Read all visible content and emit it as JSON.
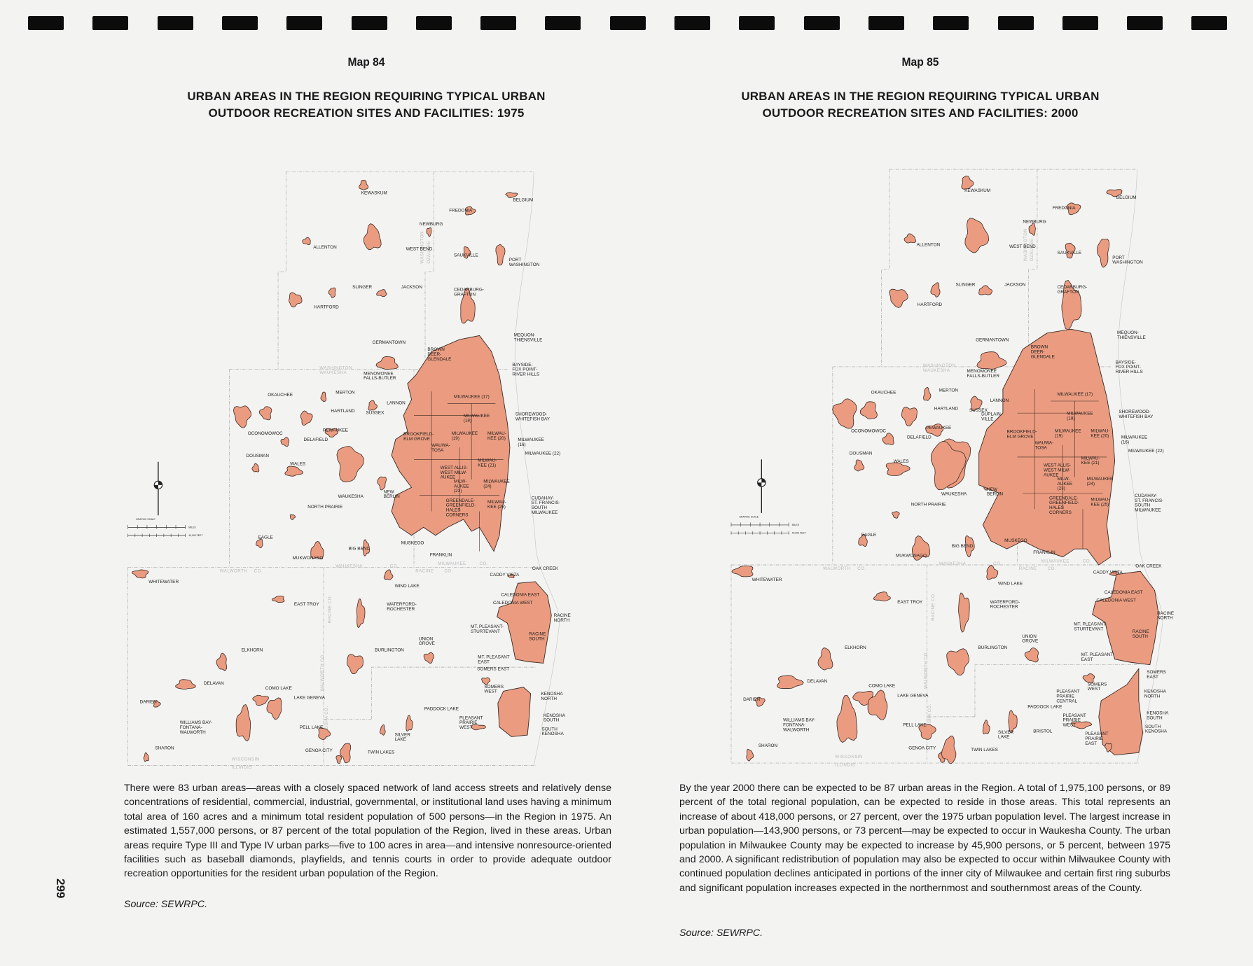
{
  "page_number": "299",
  "colors": {
    "urban_area": "#eb9c80",
    "outline": "#3b2a24",
    "county_line": "#a8a8a8",
    "page": "#f3f3f2"
  },
  "maps": [
    {
      "number": "Map 84",
      "title_lines": [
        "URBAN AREAS IN THE REGION REQUIRING TYPICAL URBAN",
        "OUTDOOR RECREATION SITES AND FACILITIES: 1975"
      ],
      "paragraph": "There were 83 urban areas—areas with a closely spaced network of land access streets and relatively dense concentrations of residential, commercial, industrial, governmental, or institutional land uses having a minimum total area of 160 acres and a minimum total resident population of 500 persons—in the Region in 1975. An estimated 1,557,000 persons, or 87 percent of the total population of the Region, lived in these areas. Urban areas require Type III and Type IV urban parks—five to 100 acres in area—and intensive nonresource-oriented facilities such as baseball diamonds, playfields, and tennis courts in order to provide adequate outdoor recreation opportunities for the resident urban population of the Region.",
      "source": "Source:  SEWRPC.",
      "labels": [
        [
          "KEWASKUM"
        ],
        [
          "FREDONIA"
        ],
        [
          "BELGIUM"
        ],
        [
          "NEWBURG"
        ],
        [
          "ALLENTON"
        ],
        [
          "WEST BEND"
        ],
        [
          "SAUKVILLE"
        ],
        [
          "PORT",
          "WASHINGTON"
        ],
        [
          "SLINGER"
        ],
        [
          "JACKSON"
        ],
        [
          "CEDARBURG-",
          "GRAFTON"
        ],
        [
          "HARTFORD"
        ],
        [
          "GERMANTOWN"
        ],
        [
          "MEQUON-",
          "THIENSVILLE"
        ],
        [
          "BROWN",
          "DEER-",
          "GLENDALE"
        ],
        [
          "BAYSIDE-",
          "FOX POINT-",
          "RIVER HILLS"
        ],
        [
          "MENOMONEE",
          "FALLS-BUTLER"
        ],
        [
          "OKAUCHEE"
        ],
        [
          "MERTON"
        ],
        [
          "LANNON"
        ],
        [
          "HARTLAND"
        ],
        [
          "SUSSEX"
        ],
        [
          "SHOREWOOD-",
          "WHITEFISH BAY"
        ],
        [
          "MILWAUKEE (17)"
        ],
        [
          "MILWAUKEE",
          "(18)"
        ],
        [
          "OCONOMOWOC"
        ],
        [
          "PEWAUKEE"
        ],
        [
          "BROOKFIELD-",
          "ELM GROVE"
        ],
        [
          "MILWAUKEE",
          "(19)"
        ],
        [
          "MILWAU-",
          "KEE (20)"
        ],
        [
          "DELAFIELD"
        ],
        [
          "MILWAUKEE",
          "(16)"
        ],
        [
          "WAUWA-",
          "TOSA"
        ],
        [
          "MILWAUKEE (22)"
        ],
        [
          "DOUSMAN"
        ],
        [
          "WALES"
        ],
        [
          "MILWAU-",
          "KEE (21)"
        ],
        [
          "WEST ALLIS-",
          "WEST MILW-",
          "AUKEE"
        ],
        [
          "MILW-",
          "AUKEE",
          "(23)"
        ],
        [
          "MILWAUKEE",
          "(24)"
        ],
        [
          "WAUKESHA"
        ],
        [
          "NEW",
          "BERLIN"
        ],
        [
          "GREENDALE-",
          "GREENFIELD-",
          "HALES",
          "CORNERS"
        ],
        [
          "MILWAU-",
          "KEE (25)"
        ],
        [
          "CUDAHAY-",
          "ST. FRANCIS-",
          "SOUTH",
          "MILWAUKEE"
        ],
        [
          "NORTH PRAIRIE"
        ],
        [
          "EAGLE"
        ],
        [
          "MUSKEGO"
        ],
        [
          "BIG BEND"
        ],
        [
          "MUKWONAGO"
        ],
        [
          "FRANKLIN"
        ],
        [
          "OAK CREEK"
        ],
        [
          "CADDY VISTA"
        ],
        [
          "WHITEWATER"
        ],
        [
          "WIND LAKE"
        ],
        [
          "CALEDONIA EAST"
        ],
        [
          "CALEDONIA WEST"
        ],
        [
          "EAST TROY"
        ],
        [
          "WATERFORD-",
          "ROCHESTER"
        ],
        [
          "RACINE",
          "NORTH"
        ],
        [
          "MT. PLEASANT-",
          "STURTEVANT"
        ],
        [
          "RACINE",
          "SOUTH"
        ],
        [
          "UNION",
          "GROVE"
        ],
        [
          "BURLINGTON"
        ],
        [
          "ELKHORN"
        ],
        [
          "MT. PLEASANT",
          "EAST"
        ],
        [
          "SOMERS EAST"
        ],
        [
          "SOMERS",
          "WEST"
        ],
        [
          "DELAVAN"
        ],
        [
          "COMO LAKE"
        ],
        [
          "LAKE GENEVA"
        ],
        [
          "KENOSHA",
          "NORTH"
        ],
        [
          "DARIEN"
        ],
        [
          "PADDOCK LAKE"
        ],
        [
          "PLEASANT",
          "PRAIRIE",
          "WEST"
        ],
        [
          "KENOSHA",
          "SOUTH"
        ],
        [
          "WILLIAMS BAY-",
          "FONTANA-",
          "WALWORTH"
        ],
        [
          "SOUTH",
          "KENOSHA"
        ],
        [
          "PELL LAKE"
        ],
        [
          "SILVER",
          "LAKE"
        ],
        [
          "SHARON"
        ],
        [
          "GENOA CITY"
        ],
        [
          "TWIN LAKES"
        ]
      ]
    },
    {
      "number": "Map 85",
      "title_lines": [
        "URBAN AREAS IN THE REGION REQUIRING TYPICAL URBAN",
        "OUTDOOR RECREATION SITES AND FACILITIES: 2000"
      ],
      "paragraph": "By the year 2000 there can be expected to be 87 urban areas in the Region. A total of 1,975,100 persons, or 89 percent of the total regional population, can be expected to reside in those areas. This total represents an increase of about 418,000 persons, or 27 percent, over the 1975 urban population level. The largest increase in urban population—143,900 persons, or 73 percent—may be expected to occur in Waukesha County. The urban population in Milwaukee County may be expected to increase by 45,900 persons, or 5 percent, between 1975 and 2000. A significant redistribution of population may also be expected to occur within Milwaukee County with continued population declines anticipated in portions of the inner city of Milwaukee and certain first ring suburbs and significant population increases expected in the northernmost and southernmost areas of the County.",
      "source": "Source:  SEWRPC.",
      "labels": [
        [
          "KEWASKUM"
        ],
        [
          "FREDONIA"
        ],
        [
          "BELGIUM"
        ],
        [
          "NEWBURG"
        ],
        [
          "ALLENTON"
        ],
        [
          "WEST BEND"
        ],
        [
          "SAUKVILLE"
        ],
        [
          "PORT",
          "WASHINGTON"
        ],
        [
          "SLINGER"
        ],
        [
          "JACKSON"
        ],
        [
          "CEDARBURG-",
          "GRAFTON"
        ],
        [
          "HARTFORD"
        ],
        [
          "GERMANTOWN"
        ],
        [
          "MEQUON-",
          "THIENSVILLE"
        ],
        [
          "BROWN",
          "DEER-",
          "GLENDALE"
        ],
        [
          "BAYSIDE-",
          "FOX POINT-",
          "RIVER HILLS"
        ],
        [
          "MENOMONEE",
          "FALLS-BUTLER"
        ],
        [
          "OKAUCHEE"
        ],
        [
          "MERTON"
        ],
        [
          "LANNON"
        ],
        [
          "HARTLAND"
        ],
        [
          "SUSSEX"
        ],
        [
          "SHOREWOOD-",
          "WHITEFISH BAY"
        ],
        [
          "MILWAUKEE (17)"
        ],
        [
          "MILWAUKEE",
          "(18)"
        ],
        [
          "OCONOMOWOC"
        ],
        [
          "PEWAUKEE"
        ],
        [
          "BROOKFIELD-",
          "ELM GROVE"
        ],
        [
          "MILWAUKEE",
          "(19)"
        ],
        [
          "MILWAU-",
          "KEE (20)"
        ],
        [
          "DELAFIELD"
        ],
        [
          "MILWAUKEE",
          "(16)"
        ],
        [
          "WAUWA-",
          "TOSA"
        ],
        [
          "MILWAUKEE (22)"
        ],
        [
          "DOUSMAN"
        ],
        [
          "WALES"
        ],
        [
          "MILWAU-",
          "KEE (21)"
        ],
        [
          "WEST ALLIS-",
          "WEST MILW-",
          "AUKEE"
        ],
        [
          "MILW-",
          "AUKEE",
          "(23)"
        ],
        [
          "MILWAUKEE",
          "(24)"
        ],
        [
          "WAUKESHA"
        ],
        [
          "NEW",
          "BERLIN"
        ],
        [
          "GREENDALE-",
          "GREENFIELD-",
          "HALES",
          "CORNERS"
        ],
        [
          "MILWAU-",
          "KEE (25)"
        ],
        [
          "CUDAHAY-",
          "ST. FRANCIS-",
          "SOUTH",
          "MILWAUKEE"
        ],
        [
          "NORTH PRAIRIE"
        ],
        [
          "EAGLE"
        ],
        [
          "MUSKEGO"
        ],
        [
          "BIG BEND"
        ],
        [
          "MUKWONAGO"
        ],
        [
          "FRANKLIN"
        ],
        [
          "OAK CREEK"
        ],
        [
          "CADDY VISTA"
        ],
        [
          "WHITEWATER"
        ],
        [
          "WIND LAKE"
        ],
        [
          "CALEDONIA EAST"
        ],
        [
          "CALEDONIA WEST"
        ],
        [
          "EAST TROY"
        ],
        [
          "WATERFORD-",
          "ROCHESTER"
        ],
        [
          "RACINE",
          "NORTH"
        ],
        [
          "MT. PLEASANT-",
          "STURTEVANT"
        ],
        [
          "RACINE",
          "SOUTH"
        ],
        [
          "UNION",
          "GROVE"
        ],
        [
          "BURLINGTON"
        ],
        [
          "ELKHORN"
        ],
        [
          "MT. PLEASANT",
          "EAST"
        ],
        [
          "SOMERS",
          "EAST"
        ],
        [
          "SOMERS",
          "WEST"
        ],
        [
          "DELAVAN"
        ],
        [
          "COMO LAKE"
        ],
        [
          "LAKE GENEVA"
        ],
        [
          "KENOSHA",
          "NORTH"
        ],
        [
          "DARIEN"
        ],
        [
          "PADDOCK LAKE"
        ],
        [
          "PLEASANT",
          "PRAIRIE",
          "WEST"
        ],
        [
          "KENOSHA",
          "SOUTH"
        ],
        [
          "WILLIAMS BAY-",
          "FONTANA-",
          "WALWORTH"
        ],
        [
          "SOUTH",
          "KENOSHA"
        ],
        [
          "PELL LAKE"
        ],
        [
          "SILVER",
          "LAKE"
        ],
        [
          "SHARON"
        ],
        [
          "GENOA CITY"
        ],
        [
          "TWIN LAKES"
        ],
        [
          "DUPLAIN-",
          "VILLE"
        ],
        [
          "PLEASANT",
          "PRAIRIE",
          "CENTRAL"
        ],
        [
          "BRISTOL"
        ],
        [
          "PLEASANT",
          "PRAIRIE",
          "EAST"
        ]
      ]
    }
  ],
  "county_labels": [
    "WASHINGTON",
    "WAUKESHA",
    "CO.",
    "WALWORTH",
    "CO.",
    "WAUKESHA",
    "CO.",
    "RACINE",
    "CO.",
    "MILWAUKEE",
    "CO.",
    "WISCONSIN",
    "ILLINOIS",
    "WASHINGTON",
    "OZAUKEE",
    "RACINE CO.",
    "WALWORTH CO.",
    "KENOSHA CO."
  ],
  "scale": {
    "title": "GRAPHIC SCALE",
    "miles_label": "MILES",
    "feet_label": "40,000 FEET"
  }
}
